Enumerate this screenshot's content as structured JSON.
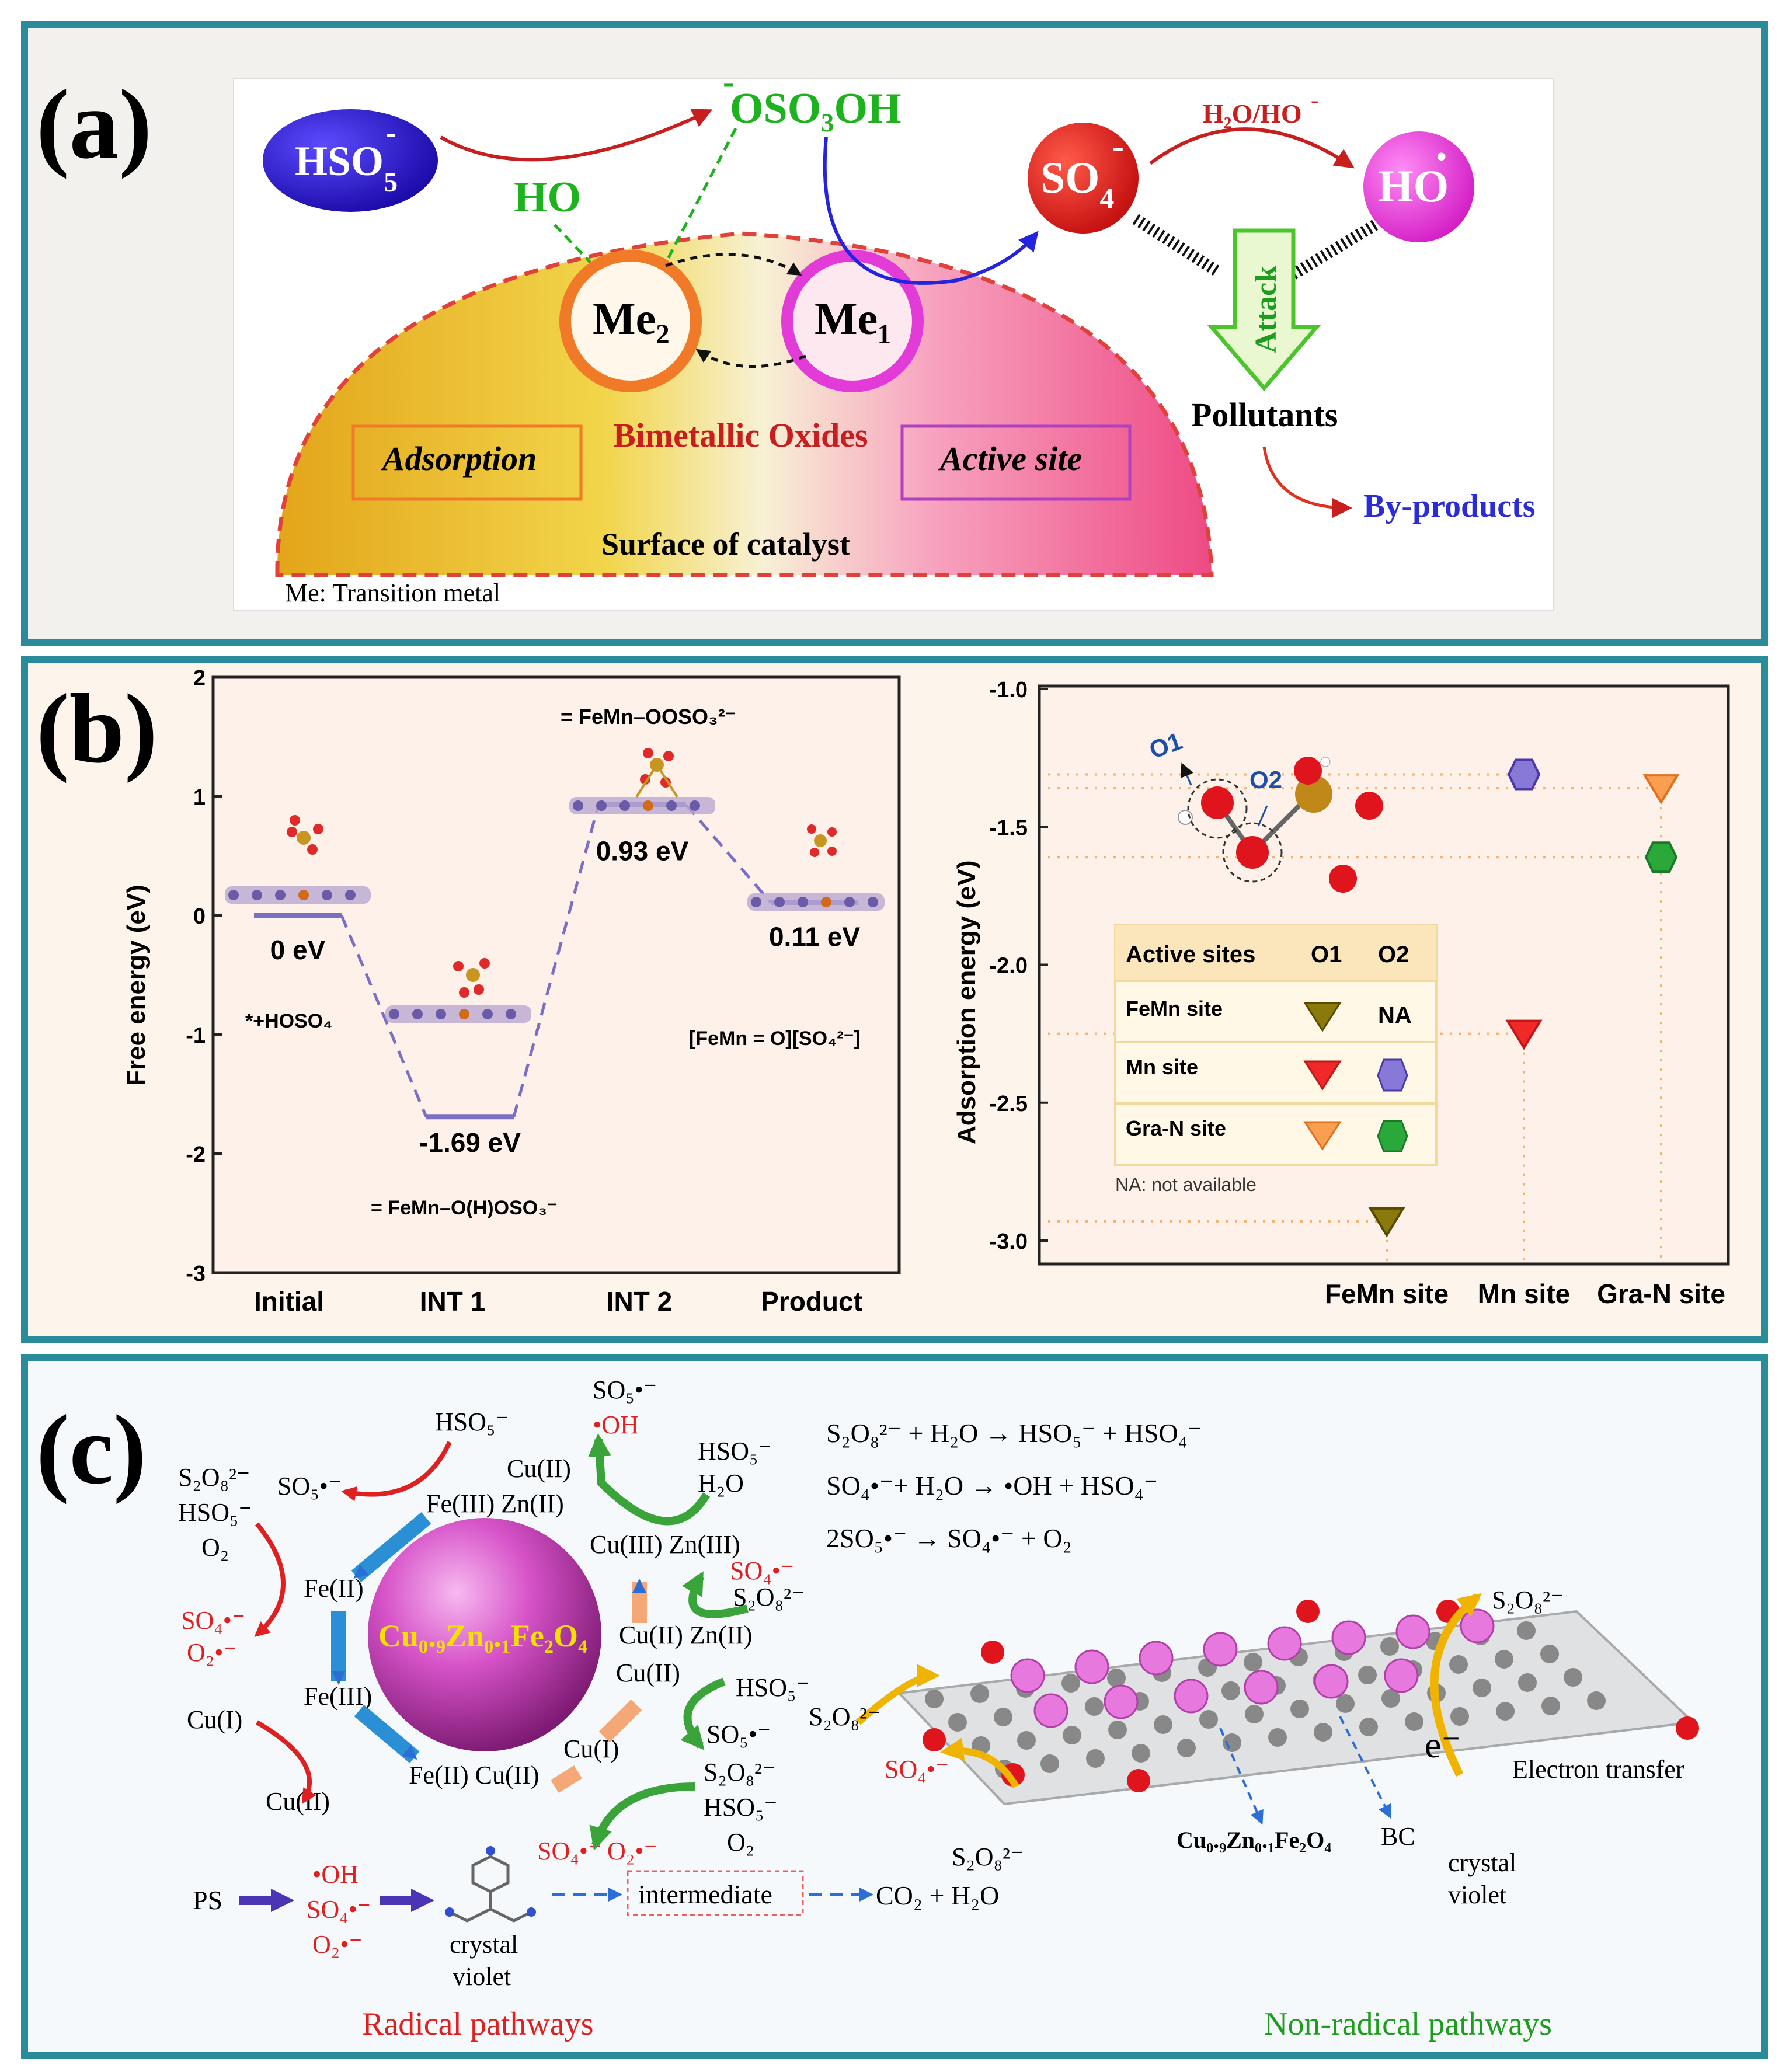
{
  "panel_a": {
    "label": "(a)",
    "hso5": "HSO",
    "hso5_sup": "-",
    "hso5_sub": "5",
    "oso3oh": "OSO₃OH",
    "oso3oh_charge": "-",
    "ho_green": "HO",
    "so4": "SO",
    "so4_sub": "4",
    "so4_charge": "-",
    "h2o_label": "H₂O/HO",
    "h2o_charge": "-",
    "ho_radical": "HO",
    "ho_dot": "•",
    "attack": "Attack",
    "pollutants": "Pollutants",
    "byproducts": "By-products",
    "me2": "Me₂",
    "me1": "Me₁",
    "bimetallic": "Bimetallic Oxides",
    "adsorption": "Adsorption",
    "active_site": "Active site",
    "surface": "Surface of catalyst",
    "footnote": "Me: Transition metal",
    "colors": {
      "hso5": "#2a1ad6",
      "so4": "#e8281c",
      "ho": "#f23ae6",
      "green": "#1fb21f",
      "byproducts": "#2b2bd8"
    }
  },
  "panel_b": {
    "label": "(b)",
    "left_chart": {
      "type": "energy-profile",
      "ylabel": "Free energy (eV)",
      "ylim": [
        -3,
        2
      ],
      "yticks": [
        "2",
        "1",
        "0",
        "-1",
        "-2",
        "-3"
      ],
      "categories": [
        "Initial",
        "INT 1",
        "INT 2",
        "Product"
      ],
      "values": [
        0,
        -1.69,
        0.93,
        0.11
      ],
      "value_labels": [
        "0 eV",
        "-1.69 eV",
        "0.93 eV",
        "0.11 eV"
      ],
      "species": [
        "*+HOSO₄",
        "= FeMn–O(H)OSO₃⁻",
        "= FeMn–OOSO₃²⁻",
        "[FeMn = O][SO₄²⁻]"
      ]
    },
    "right_chart": {
      "type": "scatter",
      "ylabel": "Adsorption energy (eV)",
      "ylim": [
        -3.0,
        -1.0
      ],
      "yticks": [
        "-1.0",
        "-1.5",
        "-2.0",
        "-2.5",
        "-3.0"
      ],
      "categories": [
        "FeMn site",
        "Mn site",
        "Gra-N site"
      ],
      "series": [
        {
          "name": "O1",
          "values": [
            -2.93,
            -2.25,
            -1.36
          ]
        },
        {
          "name": "O2",
          "values": [
            null,
            -1.31,
            -1.61
          ]
        }
      ],
      "o1_label": "O1",
      "o2_label": "O2",
      "legend_header": [
        "Active sites",
        "O1",
        "O2"
      ],
      "legend_rows": [
        "FeMn site",
        "Mn site",
        "Gra-N site"
      ],
      "legend_na": "NA",
      "na_note": "NA: not available"
    }
  },
  "panel_c": {
    "label": "(c)",
    "sphere_label": "Cu₀.₉Zn₀.₁Fe₂O₄",
    "equations": [
      "S₂O₈²⁻ + H₂O → HSO₅⁻ + HSO₄⁻",
      "SO₄•⁻+ H₂O → •OH + HSO₄⁻",
      "2SO₅•⁻ → SO₄•⁻ + O₂"
    ],
    "labels": {
      "hso5_top": "HSO₅⁻",
      "so5_top": "SO₅•⁻",
      "oh_top": "•OH",
      "hso5_r": "HSO₅⁻",
      "h2o_r": "H₂O",
      "s2o8_l": "S₂O₈²⁻",
      "hso5_l": "HSO₅⁻",
      "o2_l": "O₂",
      "so5_l": "SO₅•⁻",
      "cu2_t": "Cu(II)",
      "fe3zn2": "Fe(III) Zn(II)",
      "cu3zn3": "Cu(III) Zn(III)",
      "fe2_l": "Fe(II)",
      "so4_l": "SO₄•⁻",
      "o2r_l": "O₂•⁻",
      "so4_r": "SO₄•⁻",
      "s2o8_r": "S₂O₈²⁻",
      "cu2zn2": "Cu(II)  Zn(II)",
      "fe3_l": "Fe(III)",
      "cu1_l": "Cu(I)",
      "cu2_b": "Cu(II)",
      "cu2_r2": "Cu(II)",
      "hso5_r2": "HSO₅⁻",
      "so5_r2": "SO₅•⁻",
      "cu1_r": "Cu(I)",
      "fe2cu2": "Fe(II) Cu(II)",
      "s2o8_br": "S₂O₈²⁻",
      "hso5_br": "HSO₅⁻",
      "o2_br": "O₂",
      "so4_b": "SO₄•⁻",
      "o2_b": "O₂•⁻",
      "ps": "PS",
      "oh_p": "•OH",
      "so4_p": "SO₄•⁻",
      "o2_p": "O₂•⁻",
      "crystal": "crystal",
      "violet": "violet",
      "intermediate": "intermediate",
      "co2": "CO₂ + H₂O",
      "radical": "Radical pathways",
      "nonradical": "Non-radical pathways",
      "s2o8_gl": "S₂O₈²⁻",
      "so4_gl": "SO₄•⁻",
      "s2o8_gb": "S₂O₈²⁻",
      "s2o8_gr": "S₂O₈²⁻",
      "e_label": "e⁻",
      "electron": "Electron transfer",
      "cuzn_gr": "Cu₀.₉Zn₀.₁Fe₂O₄",
      "bc": "BC",
      "crystal2": "crystal",
      "violet2": "violet"
    }
  }
}
